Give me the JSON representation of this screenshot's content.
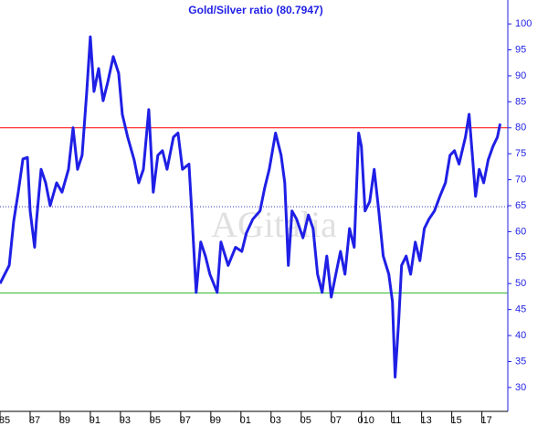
{
  "chart_data": {
    "type": "line",
    "title": "Gold/Silver ratio (80.7947)",
    "watermark": "AGitalia",
    "color": "#1f1fe6",
    "axis_color": "#1f1fe6",
    "xlim": [
      1985,
      2018.6
    ],
    "ylim": [
      25.4,
      104.6
    ],
    "yaxis_side": "right",
    "grid": false,
    "xticks": [
      {
        "value": 1985,
        "label": "85"
      },
      {
        "value": 1987,
        "label": "87"
      },
      {
        "value": 1989,
        "label": "89"
      },
      {
        "value": 1991,
        "label": "91"
      },
      {
        "value": 1993,
        "label": "93"
      },
      {
        "value": 1995,
        "label": "95"
      },
      {
        "value": 1997,
        "label": "97"
      },
      {
        "value": 1999,
        "label": "99"
      },
      {
        "value": 2001,
        "label": "01"
      },
      {
        "value": 2003,
        "label": "03"
      },
      {
        "value": 2005,
        "label": "05"
      },
      {
        "value": 2007,
        "label": "07"
      },
      {
        "value": 2009,
        "label": "010"
      },
      {
        "value": 2011,
        "label": "11"
      },
      {
        "value": 2013,
        "label": "13"
      },
      {
        "value": 2015,
        "label": "15"
      },
      {
        "value": 2017,
        "label": "17"
      }
    ],
    "yticks": [
      30,
      35,
      40,
      45,
      50,
      55,
      60,
      65,
      70,
      75,
      80,
      85,
      90,
      95,
      100
    ],
    "hlines": [
      {
        "value": 80,
        "color": "#ff0000",
        "dash": false
      },
      {
        "value": 64.8,
        "color": "#3333aa",
        "dash": true
      },
      {
        "value": 48.2,
        "color": "#33bb33",
        "dash": false
      }
    ],
    "x": [
      1985.0,
      1985.61,
      1985.91,
      1986.21,
      1986.52,
      1986.82,
      1987.0,
      1987.3,
      1987.42,
      1987.73,
      1988.03,
      1988.33,
      1988.76,
      1989.12,
      1989.55,
      1989.85,
      1990.15,
      1990.45,
      1990.76,
      1991.0,
      1991.24,
      1991.55,
      1991.85,
      1992.15,
      1992.52,
      1992.88,
      1993.12,
      1993.48,
      1993.91,
      1994.21,
      1994.52,
      1994.88,
      1995.18,
      1995.48,
      1995.79,
      1996.09,
      1996.52,
      1996.82,
      1997.12,
      1997.55,
      1997.73,
      1998.03,
      1998.33,
      1998.64,
      1998.94,
      1999.42,
      1999.67,
      2000.15,
      2000.64,
      2001.06,
      2001.36,
      2001.79,
      2002.27,
      2002.58,
      2002.88,
      2003.3,
      2003.67,
      2003.91,
      2004.15,
      2004.39,
      2004.7,
      2005.12,
      2005.48,
      2005.79,
      2006.09,
      2006.39,
      2006.7,
      2007.0,
      2007.3,
      2007.61,
      2007.91,
      2008.21,
      2008.52,
      2008.82,
      2009.0,
      2009.24,
      2009.55,
      2009.85,
      2010.15,
      2010.45,
      2010.82,
      2011.06,
      2011.24,
      2011.48,
      2011.67,
      2011.97,
      2012.27,
      2012.58,
      2012.88,
      2013.18,
      2013.48,
      2013.85,
      2014.21,
      2014.58,
      2014.88,
      2015.18,
      2015.48,
      2015.91,
      2016.15,
      2016.39,
      2016.58,
      2016.82,
      2017.12,
      2017.42,
      2017.73,
      2018.03,
      2018.21
    ],
    "values": [
      50,
      53.5,
      62,
      67.6,
      74,
      74.3,
      64,
      57,
      62,
      72,
      69.4,
      65,
      69.4,
      67.6,
      72,
      80,
      72,
      74.7,
      87,
      97.5,
      87,
      91.4,
      85.2,
      88.7,
      93.7,
      90.5,
      82.6,
      78.2,
      73.8,
      69.4,
      72,
      83.5,
      67.6,
      74.7,
      75.6,
      72,
      78.2,
      79,
      72,
      73,
      64,
      48.3,
      58,
      55.3,
      51.8,
      48.3,
      58,
      53.5,
      57,
      56.2,
      59.7,
      62.4,
      64,
      68.5,
      72,
      79,
      74.7,
      69.4,
      53.5,
      64,
      62.4,
      58.8,
      63.2,
      60.6,
      51.8,
      48.3,
      55.3,
      47.4,
      51.8,
      56.2,
      51.8,
      60.6,
      57,
      79,
      76.4,
      64,
      65.8,
      72,
      64,
      55.3,
      51.8,
      46.5,
      32,
      43,
      53.5,
      55.3,
      51.8,
      58,
      54.4,
      60.6,
      62.4,
      64,
      66.8,
      69.4,
      74.7,
      75.6,
      73,
      78.2,
      82.6,
      73.8,
      66.8,
      72,
      69.4,
      73.8,
      76.4,
      78.2,
      80.79
    ]
  }
}
